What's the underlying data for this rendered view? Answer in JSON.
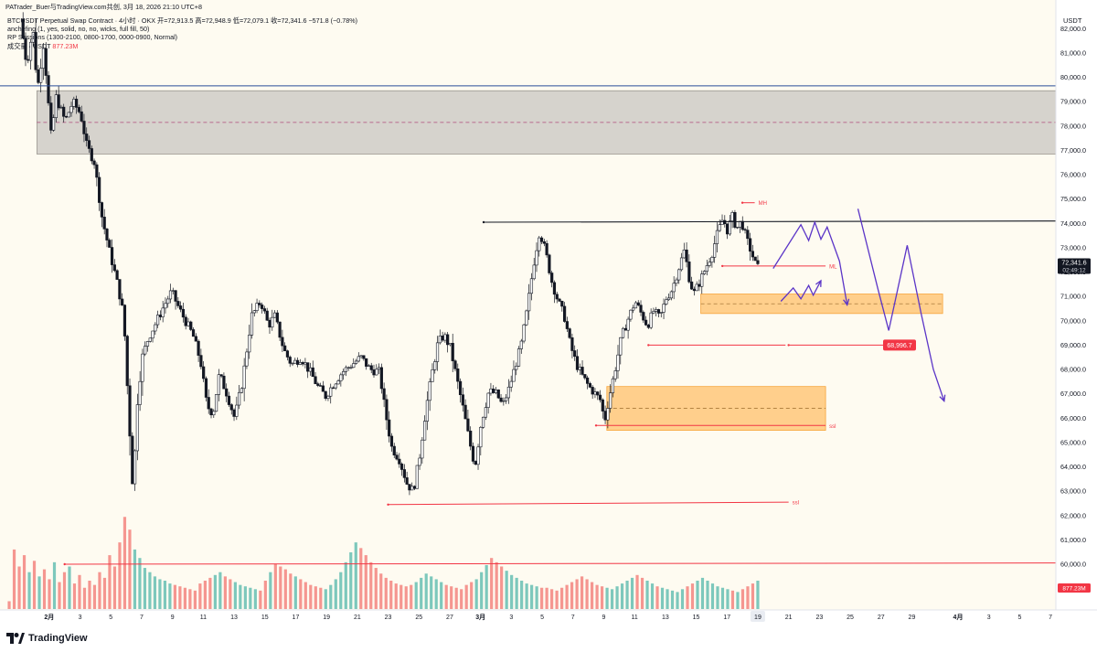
{
  "header": {
    "author_line": "PATrader_Buer与TradingView.com共创, 3月 18, 2026 21:10 UTC+8"
  },
  "legend": {
    "symbol_line": "BTCUSDT Perpetual Swap Contract · 4小时 · OKX  开=72,913.5  高=72,948.9  低=72,079.1  收=72,341.6  −571.8 (−0.78%)",
    "indicator_1": "anchefing (1, yes, solid, no, no, wicks, full fill, 50)",
    "indicator_2": "RP Sessions (1300-2100, 0800-1700, 0000-0900, Normal)",
    "volume_label": "成交量 · USDT",
    "volume_value": "877.23M"
  },
  "branding": {
    "logo_text": "TradingView"
  },
  "colors": {
    "background": "#fefbf1",
    "up": "#26a69a",
    "down": "#ef5350",
    "drawing_red": "#f23645",
    "zone_fill": "#ffc77a",
    "grey_zone": "#d6d3cd",
    "projection": "#5b35c7",
    "price_tag_bg": "#131722"
  },
  "chart_data": {
    "type": "candlestick",
    "symbol": "BTCUSDT Perpetual Swap Contract",
    "timeframe": "4小时",
    "exchange": "OKX",
    "ohlc_last": {
      "open": 72913.5,
      "high": 72948.9,
      "low": 72079.1,
      "close": 72341.6,
      "change": -571.8,
      "change_pct": -0.78
    },
    "y_axis": {
      "label": "USDT",
      "ylim": [
        59000,
        83000
      ],
      "ticks": [
        60000,
        61000,
        62000,
        63000,
        64000,
        65000,
        66000,
        67000,
        68000,
        69000,
        70000,
        71000,
        72000,
        73000,
        74000,
        75000,
        76000,
        77000,
        78000,
        79000,
        80000,
        81000,
        82000
      ],
      "tick_labels": [
        "60,000.0",
        "61,000.0",
        "62,000.0",
        "63,000.0",
        "64,000.0",
        "65,000.0",
        "66,000.0",
        "67,000.0",
        "68,000.0",
        "69,000.0",
        "70,000.0",
        "71,000.0",
        "72,000.0",
        "73,000.0",
        "74,000.0",
        "75,000.0",
        "76,000.0",
        "77,000.0",
        "78,000.0",
        "79,000.0",
        "80,000.0",
        "81,000.0",
        "82,000.0"
      ]
    },
    "x_axis": {
      "ticks": [
        {
          "label": "2月",
          "day": 1,
          "bold": true
        },
        {
          "label": "3",
          "day": 3
        },
        {
          "label": "5",
          "day": 5
        },
        {
          "label": "7",
          "day": 7
        },
        {
          "label": "9",
          "day": 9
        },
        {
          "label": "11",
          "day": 11
        },
        {
          "label": "13",
          "day": 13
        },
        {
          "label": "15",
          "day": 15
        },
        {
          "label": "17",
          "day": 17
        },
        {
          "label": "19",
          "day": 19
        },
        {
          "label": "21",
          "day": 21
        },
        {
          "label": "23",
          "day": 23
        },
        {
          "label": "25",
          "day": 25
        },
        {
          "label": "27",
          "day": 27
        },
        {
          "label": "3月",
          "day": 29,
          "bold": true
        },
        {
          "label": "3",
          "day": 31
        },
        {
          "label": "5",
          "day": 33
        },
        {
          "label": "7",
          "day": 35
        },
        {
          "label": "9",
          "day": 37
        },
        {
          "label": "11",
          "day": 39
        },
        {
          "label": "13",
          "day": 41
        },
        {
          "label": "15",
          "day": 43
        },
        {
          "label": "17",
          "day": 45
        },
        {
          "label": "19",
          "day": 47
        },
        {
          "label": "21",
          "day": 49
        },
        {
          "label": "23",
          "day": 51
        },
        {
          "label": "25",
          "day": 53
        },
        {
          "label": "27",
          "day": 55
        },
        {
          "label": "29",
          "day": 57
        },
        {
          "label": "4月",
          "day": 60,
          "bold": true
        },
        {
          "label": "3",
          "day": 62
        },
        {
          "label": "5",
          "day": 64
        },
        {
          "label": "7",
          "day": 66
        }
      ],
      "highlight_label": "19"
    },
    "price_path": [
      [
        -0.7,
        82400
      ],
      [
        -0.3,
        80500
      ],
      [
        0.1,
        82000
      ],
      [
        0.4,
        79500
      ],
      [
        0.8,
        81400
      ],
      [
        1.1,
        79000
      ],
      [
        1.3,
        77500
      ],
      [
        1.6,
        79200
      ],
      [
        2.2,
        78200
      ],
      [
        2.7,
        79000
      ],
      [
        3.2,
        78500
      ],
      [
        3.6,
        77200
      ],
      [
        4.1,
        76500
      ],
      [
        4.6,
        74200
      ],
      [
        5.1,
        72800
      ],
      [
        5.6,
        71500
      ],
      [
        6.0,
        70200
      ],
      [
        6.3,
        66500
      ],
      [
        6.6,
        63000
      ],
      [
        6.9,
        66800
      ],
      [
        7.2,
        68500
      ],
      [
        7.6,
        69300
      ],
      [
        8.0,
        69800
      ],
      [
        8.6,
        70600
      ],
      [
        9.1,
        71200
      ],
      [
        9.6,
        70500
      ],
      [
        10.0,
        70000
      ],
      [
        10.5,
        69400
      ],
      [
        11.0,
        68300
      ],
      [
        11.4,
        66500
      ],
      [
        11.8,
        66200
      ],
      [
        12.2,
        67800
      ],
      [
        12.7,
        67000
      ],
      [
        13.2,
        66000
      ],
      [
        13.7,
        67500
      ],
      [
        14.3,
        70200
      ],
      [
        14.9,
        70800
      ],
      [
        15.4,
        69800
      ],
      [
        15.8,
        70200
      ],
      [
        16.4,
        68800
      ],
      [
        16.9,
        68200
      ],
      [
        17.5,
        68500
      ],
      [
        18.1,
        67900
      ],
      [
        18.6,
        67300
      ],
      [
        19.1,
        66900
      ],
      [
        19.6,
        67400
      ],
      [
        20.2,
        67900
      ],
      [
        20.8,
        68200
      ],
      [
        21.4,
        68500
      ],
      [
        22.0,
        68000
      ],
      [
        22.6,
        67900
      ],
      [
        23.0,
        66200
      ],
      [
        23.4,
        64800
      ],
      [
        23.9,
        64300
      ],
      [
        24.4,
        63300
      ],
      [
        24.8,
        63000
      ],
      [
        25.2,
        64400
      ],
      [
        25.6,
        66300
      ],
      [
        26.0,
        67800
      ],
      [
        26.4,
        69100
      ],
      [
        26.8,
        69400
      ],
      [
        27.2,
        68900
      ],
      [
        27.6,
        67700
      ],
      [
        28.0,
        66500
      ],
      [
        28.4,
        65200
      ],
      [
        28.8,
        64000
      ],
      [
        29.2,
        65800
      ],
      [
        29.7,
        67100
      ],
      [
        30.2,
        67000
      ],
      [
        30.6,
        66500
      ],
      [
        31.0,
        67200
      ],
      [
        31.4,
        68100
      ],
      [
        31.8,
        69000
      ],
      [
        32.2,
        70500
      ],
      [
        32.6,
        72300
      ],
      [
        33.0,
        73700
      ],
      [
        33.4,
        72800
      ],
      [
        33.8,
        71600
      ],
      [
        34.2,
        70800
      ],
      [
        34.6,
        70200
      ],
      [
        35.0,
        69000
      ],
      [
        35.4,
        68200
      ],
      [
        35.8,
        67700
      ],
      [
        36.2,
        67300
      ],
      [
        36.6,
        67000
      ],
      [
        37.0,
        66700
      ],
      [
        37.2,
        65800
      ],
      [
        37.5,
        66800
      ],
      [
        37.9,
        68000
      ],
      [
        38.3,
        69300
      ],
      [
        38.7,
        70000
      ],
      [
        39.2,
        70800
      ],
      [
        39.6,
        70300
      ],
      [
        40.0,
        69800
      ],
      [
        40.4,
        70400
      ],
      [
        40.8,
        70100
      ],
      [
        41.2,
        70900
      ],
      [
        41.6,
        71300
      ],
      [
        42.0,
        72100
      ],
      [
        42.4,
        72900
      ],
      [
        42.7,
        71800
      ],
      [
        43.0,
        71100
      ],
      [
        43.4,
        71600
      ],
      [
        43.8,
        72200
      ],
      [
        44.2,
        72800
      ],
      [
        44.5,
        73500
      ],
      [
        44.9,
        74200
      ],
      [
        45.2,
        73700
      ],
      [
        45.5,
        74300
      ],
      [
        45.8,
        73800
      ],
      [
        46.1,
        74100
      ],
      [
        46.4,
        73400
      ],
      [
        46.7,
        72900
      ],
      [
        47.0,
        72341.6
      ]
    ],
    "volume_in_millions": [
      55,
      420,
      300,
      380,
      260,
      340,
      230,
      280,
      210,
      330,
      190,
      260,
      300,
      180,
      240,
      150,
      200,
      170,
      260,
      220,
      380,
      300,
      470,
      650,
      560,
      420,
      360,
      290,
      260,
      230,
      210,
      200,
      180,
      170,
      160,
      150,
      140,
      130,
      180,
      200,
      220,
      240,
      260,
      230,
      210,
      190,
      170,
      160,
      150,
      140,
      130,
      200,
      260,
      320,
      300,
      280,
      250,
      230,
      210,
      190,
      170,
      160,
      150,
      140,
      170,
      210,
      260,
      330,
      400,
      470,
      430,
      380,
      330,
      290,
      250,
      220,
      200,
      180,
      170,
      160,
      170,
      190,
      220,
      250,
      230,
      210,
      190,
      170,
      160,
      150,
      140,
      170,
      190,
      210,
      260,
      310,
      360,
      330,
      300,
      270,
      240,
      220,
      200,
      180,
      170,
      160,
      150,
      150,
      140,
      130,
      150,
      170,
      190,
      210,
      230,
      210,
      190,
      170,
      160,
      150,
      140,
      160,
      180,
      200,
      220,
      240,
      220,
      200,
      180,
      160,
      150,
      140,
      130,
      120,
      140,
      160,
      180,
      200,
      220,
      200,
      180,
      160,
      150,
      140,
      130,
      120,
      140,
      160,
      180,
      200
    ],
    "current_price_tag": {
      "price": "72,341.6",
      "countdown": "02:49:12"
    },
    "volume_tag": "877.23M",
    "target_tag": "68,996.7",
    "annotations": [
      {
        "type": "hline",
        "price": 79650,
        "from_day": -1,
        "to_day": 70,
        "color": "#2a4e9a",
        "label": ""
      },
      {
        "type": "zone",
        "low": 76850,
        "high": 79450,
        "from_day": 0.2,
        "to_day": 70,
        "mid": 78150,
        "color": "grey"
      },
      {
        "type": "line",
        "x1": 29.2,
        "y1": 74050,
        "x2": 70,
        "y2": 74100,
        "color": "#131722",
        "label": ""
      },
      {
        "type": "line",
        "x1": 46.0,
        "y1": 74850,
        "x2": 46.8,
        "y2": 74850,
        "color": "#f23645",
        "label": "MH"
      },
      {
        "type": "line",
        "x1": 44.7,
        "y1": 72250,
        "x2": 51.4,
        "y2": 72250,
        "color": "#f23645",
        "label": "ML"
      },
      {
        "type": "zone",
        "low": 70300,
        "high": 71100,
        "from_day": 43.3,
        "to_day": 59.0,
        "mid": 70700,
        "color": "orange"
      },
      {
        "type": "line",
        "x1": 39.9,
        "y1": 69000,
        "x2": 48.8,
        "y2": 69000,
        "color": "#f23645",
        "label": ""
      },
      {
        "type": "line",
        "x1": 49.0,
        "y1": 69000,
        "x2": 57.0,
        "y2": 69000,
        "color": "#f23645",
        "label": ""
      },
      {
        "type": "zone",
        "low": 65500,
        "high": 67300,
        "from_day": 37.2,
        "to_day": 51.4,
        "mid": 66400,
        "color": "orange"
      },
      {
        "type": "line",
        "x1": 36.5,
        "y1": 65700,
        "x2": 51.4,
        "y2": 65700,
        "color": "#f23645",
        "label": "ssl"
      },
      {
        "type": "line",
        "x1": 23.0,
        "y1": 62450,
        "x2": 49.0,
        "y2": 62550,
        "color": "#f23645",
        "label": "ssl"
      },
      {
        "type": "line",
        "x1": 2.0,
        "y1": 60000,
        "x2": 70,
        "y2": 60050,
        "color": "#f23645",
        "label": ""
      }
    ],
    "projections": [
      [
        [
          48.0,
          72150
        ],
        [
          49.8,
          73950
        ],
        [
          50.3,
          73300
        ],
        [
          50.7,
          74050
        ],
        [
          51.1,
          73350
        ],
        [
          51.5,
          73850
        ],
        [
          52.3,
          72450
        ],
        [
          52.8,
          70650
        ]
      ],
      [
        [
          48.5,
          70800
        ],
        [
          49.3,
          71350
        ],
        [
          49.8,
          70900
        ],
        [
          50.3,
          71450
        ],
        [
          50.6,
          71050
        ],
        [
          51.1,
          71650
        ]
      ],
      [
        [
          53.5,
          74600
        ],
        [
          54.8,
          71300
        ],
        [
          55.5,
          69600
        ],
        [
          56.7,
          73100
        ],
        [
          57.6,
          70300
        ],
        [
          58.4,
          68000
        ],
        [
          59.1,
          66700
        ]
      ]
    ]
  }
}
